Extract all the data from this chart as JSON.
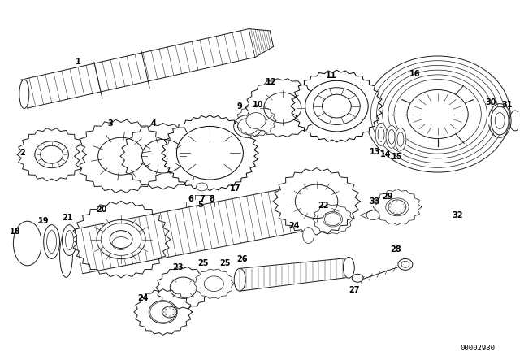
{
  "bg_color": "#ffffff",
  "diagram_code": "00002930",
  "fig_width": 6.4,
  "fig_height": 4.48,
  "dpi": 100,
  "line_color": "#1a1a1a",
  "text_color": "#000000",
  "label_fontsize": 7.0
}
